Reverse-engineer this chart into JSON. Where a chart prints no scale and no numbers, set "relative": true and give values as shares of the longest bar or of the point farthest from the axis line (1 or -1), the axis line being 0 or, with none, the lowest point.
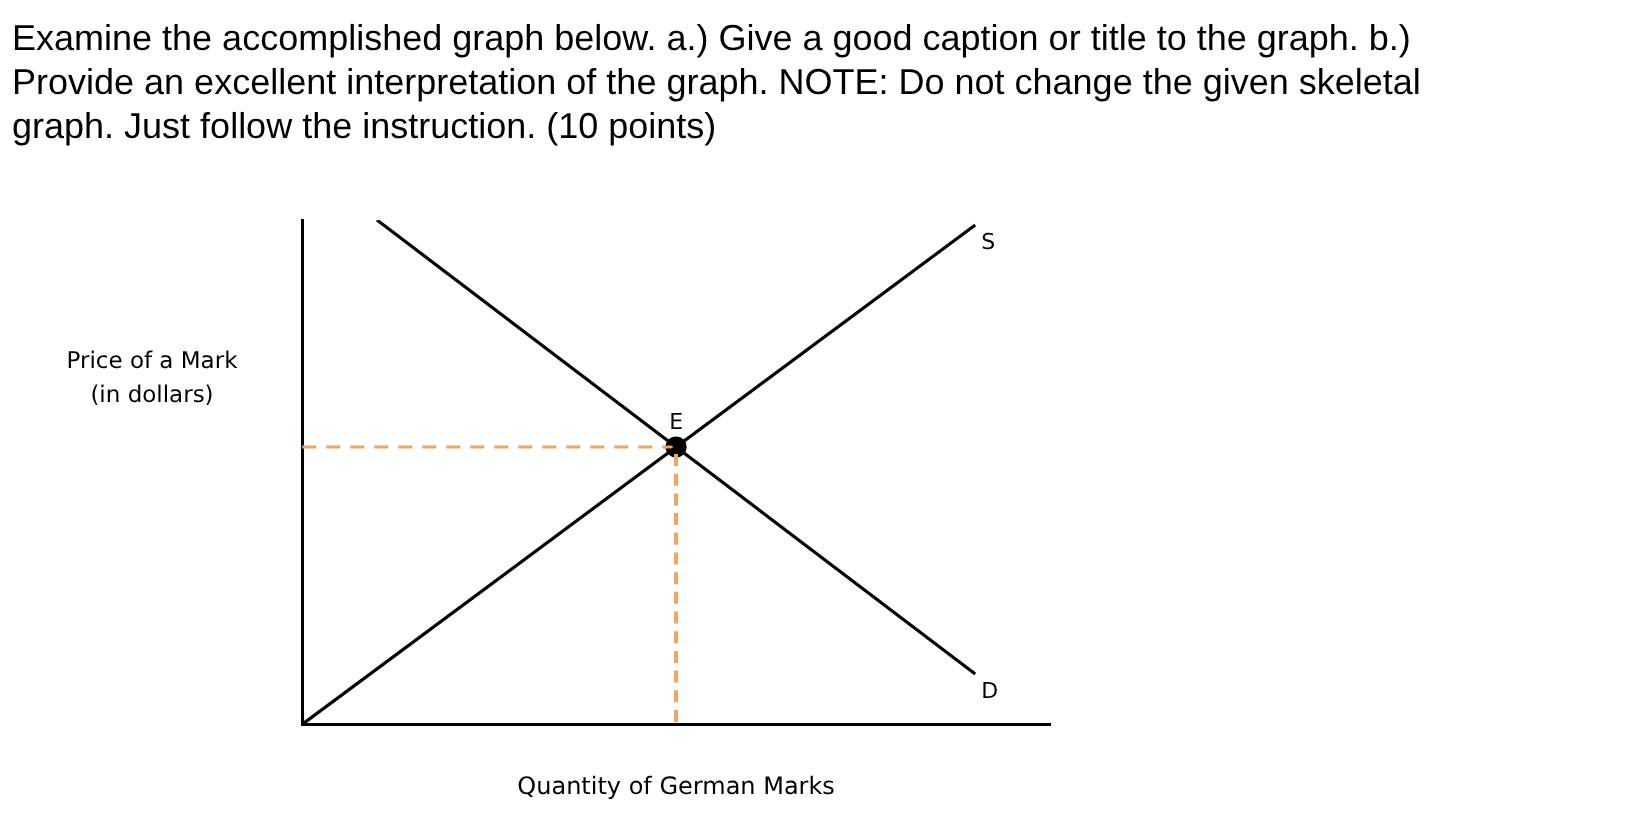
{
  "chart_data": {
    "type": "line",
    "title": "Examine the accomplished graph below. a.) Give a good caption or title to the graph. b.) Provide an excellent interpretation of the graph. NOTE: Do not change the given skeletal graph. Just follow the instruction. (10 points)",
    "xlabel": "Quantity of German Marks",
    "ylabel": "Price of a Mark (in dollars)",
    "relative": true,
    "grid": false,
    "legend": false,
    "categories": [
      null,
      null,
      null,
      null,
      null,
      null,
      null,
      null,
      null,
      null,
      null
    ],
    "series": [
      {
        "name": "S",
        "color": "#000000",
        "values": [
          0,
          null,
          null,
          null,
          null,
          null,
          null,
          null,
          null,
          0.99,
          null
        ]
      },
      {
        "name": "D",
        "color": "#000000",
        "values": [
          null,
          1,
          null,
          null,
          null,
          null,
          null,
          null,
          null,
          0.1,
          null
        ]
      },
      {
        "color": "#f4a460",
        "line_style": "dashed",
        "values": [
          0.55,
          null,
          null,
          null,
          null,
          0.55,
          null,
          null,
          null,
          null,
          null
        ]
      },
      {
        "name": "E",
        "color": "#000000",
        "marker": "circle",
        "values": [
          null,
          null,
          null,
          null,
          null,
          0.55,
          null,
          null,
          null,
          null,
          null
        ]
      }
    ]
  }
}
